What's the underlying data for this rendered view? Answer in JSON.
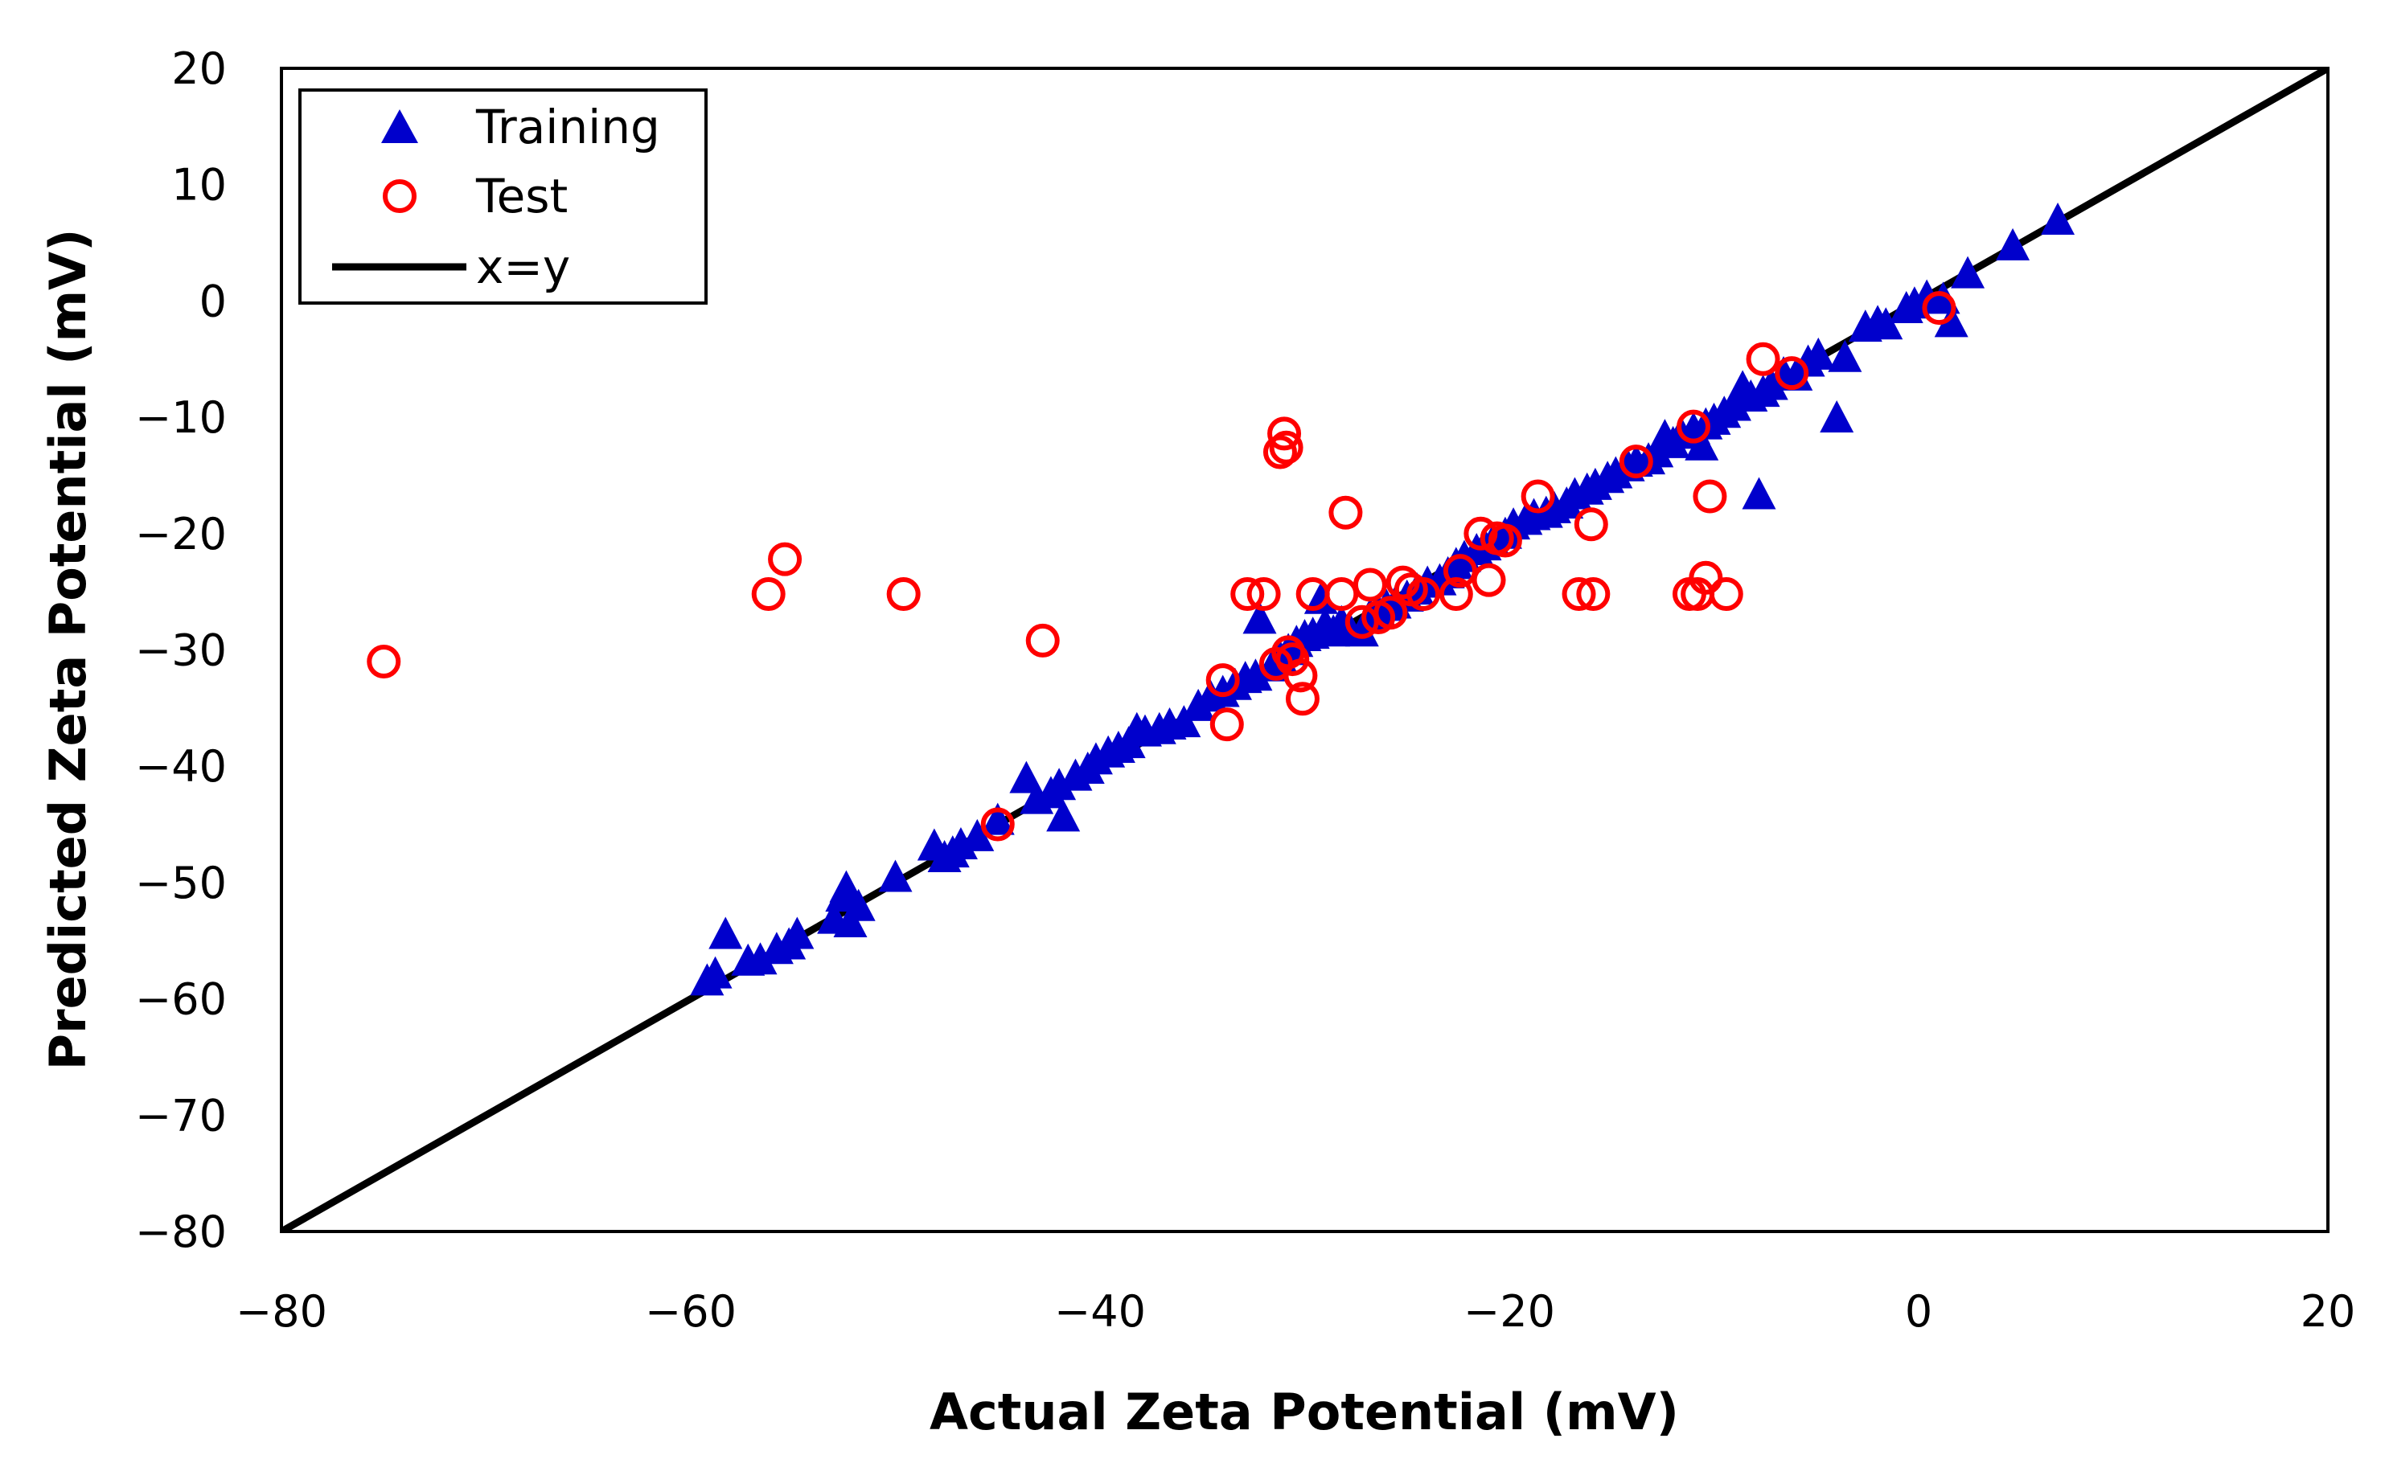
{
  "chart_data": {
    "type": "scatter",
    "title": "",
    "xlabel": "Actual Zeta Potential (mV)",
    "ylabel": "Predicted Zeta Potential (mV)",
    "xlim": [
      -80,
      20
    ],
    "ylim": [
      -80,
      20
    ],
    "xticks": [
      -80,
      -60,
      -40,
      -20,
      0,
      20
    ],
    "yticks": [
      -80,
      -70,
      -60,
      -50,
      -40,
      -30,
      -20,
      -10,
      0,
      10,
      20
    ],
    "xtick_labels": [
      "−80",
      "−60",
      "−40",
      "−20",
      "0",
      "20"
    ],
    "ytick_labels": [
      "−80",
      "−70",
      "−60",
      "−50",
      "−40",
      "−30",
      "−20",
      "−10",
      "0",
      "10",
      "20"
    ],
    "grid": false,
    "legend_position": "top-left",
    "series": [
      {
        "name": "Training",
        "marker": "triangle",
        "color": "#0000cc",
        "points": [
          [
            -59.2,
            -58.6
          ],
          [
            -58.8,
            -58.0
          ],
          [
            -58.3,
            -54.6
          ],
          [
            -57.2,
            -56.9
          ],
          [
            -56.6,
            -56.8
          ],
          [
            -55.8,
            -55.9
          ],
          [
            -55.2,
            -55.5
          ],
          [
            -54.8,
            -54.6
          ],
          [
            -53.0,
            -53.3
          ],
          [
            -52.6,
            -51.4
          ],
          [
            -52.4,
            -50.6
          ],
          [
            -52.2,
            -53.6
          ],
          [
            -51.8,
            -52.2
          ],
          [
            -50.0,
            -49.7
          ],
          [
            -48.1,
            -47.0
          ],
          [
            -47.6,
            -48.0
          ],
          [
            -47.2,
            -47.6
          ],
          [
            -46.8,
            -46.9
          ],
          [
            -46.0,
            -46.2
          ],
          [
            -45.0,
            -44.8
          ],
          [
            -43.6,
            -41.2
          ],
          [
            -43.1,
            -43.0
          ],
          [
            -42.4,
            -42.5
          ],
          [
            -42.0,
            -41.8
          ],
          [
            -41.8,
            -44.5
          ],
          [
            -41.2,
            -41.0
          ],
          [
            -40.6,
            -40.4
          ],
          [
            -40.2,
            -39.6
          ],
          [
            -39.6,
            -39.0
          ],
          [
            -39.1,
            -38.6
          ],
          [
            -38.6,
            -38.2
          ],
          [
            -38.2,
            -37.0
          ],
          [
            -37.8,
            -37.2
          ],
          [
            -37.1,
            -37.0
          ],
          [
            -36.6,
            -36.6
          ],
          [
            -35.9,
            -36.4
          ],
          [
            -35.2,
            -35.0
          ],
          [
            -34.6,
            -34.2
          ],
          [
            -34.0,
            -33.8
          ],
          [
            -33.4,
            -33.2
          ],
          [
            -32.9,
            -32.6
          ],
          [
            -32.4,
            -32.4
          ],
          [
            -32.2,
            -27.5
          ],
          [
            -31.6,
            -31.6
          ],
          [
            -31.2,
            -30.8
          ],
          [
            -30.8,
            -30.2
          ],
          [
            -30.4,
            -29.5
          ],
          [
            -30.0,
            -29.0
          ],
          [
            -29.6,
            -28.8
          ],
          [
            -29.2,
            -25.8
          ],
          [
            -29.0,
            -28.0
          ],
          [
            -28.6,
            -28.6
          ],
          [
            -28.2,
            -27.8
          ],
          [
            -27.8,
            -28.4
          ],
          [
            -27.2,
            -28.6
          ],
          [
            -26.8,
            -27.2
          ],
          [
            -26.4,
            -26.8
          ],
          [
            -26.0,
            -26.4
          ],
          [
            -25.6,
            -26.2
          ],
          [
            -25.0,
            -25.6
          ],
          [
            -24.5,
            -25.0
          ],
          [
            -24.0,
            -24.4
          ],
          [
            -23.4,
            -24.2
          ],
          [
            -23.0,
            -23.6
          ],
          [
            -22.6,
            -22.8
          ],
          [
            -22.2,
            -22.2
          ],
          [
            -21.6,
            -21.6
          ],
          [
            -21.2,
            -21.2
          ],
          [
            -20.8,
            -20.8
          ],
          [
            -20.2,
            -20.2
          ],
          [
            -19.8,
            -19.4
          ],
          [
            -19.2,
            -19.0
          ],
          [
            -18.8,
            -18.6
          ],
          [
            -18.2,
            -18.4
          ],
          [
            -17.8,
            -18.0
          ],
          [
            -17.2,
            -17.6
          ],
          [
            -16.8,
            -16.8
          ],
          [
            -16.2,
            -16.4
          ],
          [
            -15.8,
            -16.0
          ],
          [
            -15.2,
            -15.4
          ],
          [
            -14.8,
            -15.0
          ],
          [
            -14.2,
            -14.4
          ],
          [
            -13.8,
            -14.0
          ],
          [
            -13.2,
            -13.8
          ],
          [
            -12.8,
            -13.2
          ],
          [
            -12.4,
            -11.8
          ],
          [
            -12.0,
            -12.4
          ],
          [
            -11.6,
            -11.6
          ],
          [
            -11.0,
            -11.2
          ],
          [
            -10.6,
            -12.6
          ],
          [
            -10.4,
            -10.8
          ],
          [
            -10.0,
            -10.4
          ],
          [
            -9.5,
            -9.8
          ],
          [
            -9.0,
            -9.2
          ],
          [
            -8.6,
            -7.6
          ],
          [
            -8.2,
            -8.4
          ],
          [
            -7.8,
            -16.8
          ],
          [
            -7.6,
            -8.0
          ],
          [
            -7.2,
            -7.4
          ],
          [
            -6.6,
            -6.4
          ],
          [
            -6.0,
            -6.6
          ],
          [
            -5.4,
            -5.4
          ],
          [
            -4.9,
            -4.8
          ],
          [
            -4.0,
            -10.2
          ],
          [
            -3.6,
            -5.0
          ],
          [
            -2.6,
            -2.4
          ],
          [
            -2.0,
            -2.0
          ],
          [
            -1.6,
            -2.2
          ],
          [
            -0.6,
            -0.8
          ],
          [
            -0.2,
            -0.4
          ],
          [
            0.4,
            0.2
          ],
          [
            1.2,
            0.0
          ],
          [
            1.6,
            -2.0
          ],
          [
            2.4,
            2.2
          ],
          [
            4.6,
            4.6
          ],
          [
            6.8,
            6.8
          ]
        ]
      },
      {
        "name": "Test",
        "marker": "circle",
        "color": "#ff0000",
        "points": [
          [
            -75.0,
            -31.0
          ],
          [
            -56.2,
            -25.2
          ],
          [
            -55.4,
            -22.2
          ],
          [
            -49.6,
            -25.2
          ],
          [
            -45.0,
            -45.0
          ],
          [
            -42.8,
            -29.2
          ],
          [
            -34.0,
            -32.6
          ],
          [
            -33.8,
            -36.4
          ],
          [
            -32.8,
            -25.2
          ],
          [
            -32.0,
            -25.2
          ],
          [
            -31.4,
            -31.2
          ],
          [
            -31.2,
            -13.0
          ],
          [
            -31.0,
            -11.4
          ],
          [
            -30.9,
            -12.6
          ],
          [
            -30.8,
            -30.2
          ],
          [
            -30.6,
            -30.8
          ],
          [
            -30.2,
            -32.2
          ],
          [
            -30.1,
            -34.2
          ],
          [
            -29.6,
            -25.2
          ],
          [
            -28.2,
            -25.2
          ],
          [
            -28.0,
            -18.2
          ],
          [
            -27.2,
            -27.6
          ],
          [
            -26.8,
            -24.4
          ],
          [
            -26.4,
            -27.2
          ],
          [
            -25.8,
            -26.8
          ],
          [
            -25.2,
            -24.2
          ],
          [
            -24.8,
            -24.8
          ],
          [
            -24.2,
            -25.2
          ],
          [
            -22.6,
            -25.2
          ],
          [
            -22.4,
            -23.2
          ],
          [
            -21.4,
            -20.0
          ],
          [
            -21.0,
            -24.0
          ],
          [
            -20.6,
            -20.4
          ],
          [
            -20.2,
            -20.6
          ],
          [
            -18.6,
            -16.8
          ],
          [
            -16.6,
            -25.2
          ],
          [
            -16.0,
            -19.2
          ],
          [
            -15.9,
            -25.2
          ],
          [
            -13.8,
            -13.8
          ],
          [
            -11.2,
            -25.2
          ],
          [
            -11.0,
            -10.8
          ],
          [
            -10.8,
            -25.2
          ],
          [
            -10.4,
            -23.8
          ],
          [
            -10.2,
            -16.8
          ],
          [
            -9.4,
            -25.2
          ],
          [
            -7.6,
            -5.0
          ],
          [
            -6.2,
            -6.2
          ],
          [
            1.0,
            -0.6
          ]
        ]
      },
      {
        "name": "x=y",
        "marker": "line",
        "color": "#000000",
        "points": [
          [
            -80,
            -80
          ],
          [
            20,
            20
          ]
        ]
      }
    ]
  }
}
